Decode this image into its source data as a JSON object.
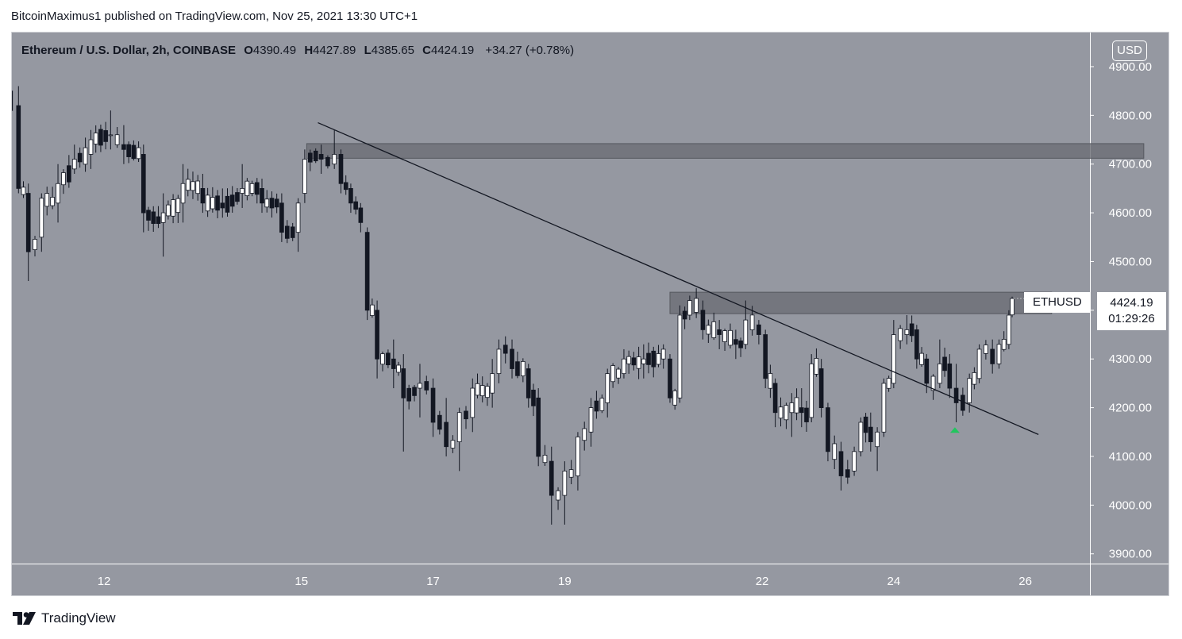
{
  "header": {
    "publish_line": "BitcoinMaximus1 published on TradingView.com, Nov 25, 2021 13:30 UTC+1"
  },
  "legend": {
    "symbol_desc": "Ethereum / U.S. Dollar, 2h, COINBASE",
    "open_label": "O",
    "open": "4390.49",
    "high_label": "H",
    "high": "4427.89",
    "low_label": "L",
    "low": "4385.65",
    "close_label": "C",
    "close": "4424.19",
    "change": "+34.27 (+0.78%)"
  },
  "price_scale": {
    "currency_button": "USD"
  },
  "last_price_tag": {
    "symbol": "ETHUSD",
    "price": "4424.19",
    "countdown": "01:29:26"
  },
  "footer": {
    "brand": "TradingView"
  },
  "colors": {
    "background": "#9598a1",
    "candle_up": "#ffffff",
    "candle_down": "#131722",
    "zone": "#6b6e76",
    "marker": "#22c55e"
  },
  "chart_data": {
    "type": "candlestick",
    "title": "",
    "ylim": [
      3880,
      4970
    ],
    "xlim": [
      10.6,
      28.2
    ],
    "y_ticks": [
      3900,
      4000,
      4100,
      4200,
      4300,
      4400,
      4500,
      4600,
      4700,
      4800,
      4900
    ],
    "x_ticks": [
      {
        "value": 12,
        "label": "12"
      },
      {
        "value": 15,
        "label": "15"
      },
      {
        "value": 17,
        "label": "17"
      },
      {
        "value": 19,
        "label": "19"
      },
      {
        "value": 22,
        "label": "22"
      },
      {
        "value": 24,
        "label": "24"
      },
      {
        "value": 26,
        "label": "26"
      }
    ],
    "grid": false,
    "anchors": [
      [
        10.58,
        4850,
        4870,
        4830,
        4810
      ],
      [
        10.7,
        4820,
        4860,
        4640,
        4650
      ],
      [
        10.85,
        4640,
        4660,
        4460,
        4520
      ],
      [
        11.05,
        4550,
        4640,
        4520,
        4630
      ],
      [
        11.3,
        4620,
        4700,
        4580,
        4660
      ],
      [
        11.55,
        4690,
        4740,
        4680,
        4710
      ],
      [
        11.8,
        4720,
        4770,
        4690,
        4750
      ],
      [
        12.1,
        4760,
        4810,
        4730,
        4760
      ],
      [
        12.3,
        4740,
        4780,
        4700,
        4730
      ],
      [
        12.6,
        4720,
        4740,
        4560,
        4600
      ],
      [
        12.9,
        4580,
        4640,
        4510,
        4600
      ],
      [
        13.2,
        4620,
        4700,
        4580,
        4660
      ],
      [
        13.5,
        4650,
        4680,
        4600,
        4620
      ],
      [
        13.8,
        4620,
        4650,
        4590,
        4610
      ],
      [
        14.1,
        4640,
        4700,
        4610,
        4650
      ],
      [
        14.4,
        4650,
        4670,
        4600,
        4620
      ],
      [
        14.7,
        4620,
        4640,
        4540,
        4560
      ],
      [
        14.95,
        4560,
        4630,
        4520,
        4620
      ],
      [
        15.05,
        4640,
        4730,
        4620,
        4710
      ],
      [
        15.3,
        4720,
        4740,
        4680,
        4710
      ],
      [
        15.5,
        4700,
        4770,
        4690,
        4720
      ],
      [
        15.6,
        4720,
        4730,
        4640,
        4660
      ],
      [
        15.75,
        4650,
        4660,
        4600,
        4620
      ],
      [
        15.9,
        4610,
        4620,
        4560,
        4580
      ],
      [
        16.0,
        4560,
        4570,
        4380,
        4400
      ],
      [
        16.15,
        4400,
        4420,
        4260,
        4300
      ],
      [
        16.4,
        4300,
        4340,
        4240,
        4280
      ],
      [
        16.55,
        4280,
        4310,
        4110,
        4220
      ],
      [
        16.8,
        4240,
        4290,
        4180,
        4250
      ],
      [
        17.0,
        4240,
        4260,
        4140,
        4170
      ],
      [
        17.2,
        4170,
        4220,
        4100,
        4120
      ],
      [
        17.4,
        4130,
        4200,
        4070,
        4190
      ],
      [
        17.6,
        4180,
        4260,
        4150,
        4240
      ],
      [
        17.9,
        4230,
        4300,
        4200,
        4270
      ],
      [
        18.0,
        4270,
        4340,
        4250,
        4320
      ],
      [
        18.2,
        4320,
        4340,
        4260,
        4280
      ],
      [
        18.45,
        4280,
        4290,
        4200,
        4220
      ],
      [
        18.6,
        4220,
        4240,
        4080,
        4100
      ],
      [
        18.8,
        4090,
        4120,
        3960,
        4020
      ],
      [
        19.0,
        4020,
        4090,
        3960,
        4070
      ],
      [
        19.2,
        4060,
        4150,
        4030,
        4140
      ],
      [
        19.4,
        4150,
        4220,
        4120,
        4200
      ],
      [
        19.65,
        4210,
        4280,
        4180,
        4270
      ],
      [
        19.9,
        4270,
        4320,
        4260,
        4300
      ],
      [
        20.2,
        4290,
        4330,
        4260,
        4300
      ],
      [
        20.5,
        4300,
        4330,
        4280,
        4320
      ],
      [
        20.6,
        4300,
        4310,
        4210,
        4220
      ],
      [
        20.75,
        4220,
        4410,
        4210,
        4390
      ],
      [
        20.9,
        4390,
        4430,
        4380,
        4420
      ],
      [
        21.1,
        4400,
        4420,
        4340,
        4360
      ],
      [
        21.35,
        4360,
        4380,
        4320,
        4350
      ],
      [
        21.6,
        4340,
        4360,
        4300,
        4330
      ],
      [
        21.75,
        4330,
        4420,
        4320,
        4380
      ],
      [
        21.95,
        4370,
        4380,
        4330,
        4350
      ],
      [
        22.05,
        4350,
        4360,
        4240,
        4260
      ],
      [
        22.2,
        4250,
        4260,
        4160,
        4190
      ],
      [
        22.45,
        4190,
        4230,
        4140,
        4210
      ],
      [
        22.6,
        4200,
        4240,
        4160,
        4190
      ],
      [
        22.75,
        4180,
        4310,
        4170,
        4290
      ],
      [
        22.9,
        4280,
        4300,
        4180,
        4200
      ],
      [
        23.0,
        4200,
        4210,
        4090,
        4110
      ],
      [
        23.2,
        4110,
        4130,
        4030,
        4060
      ],
      [
        23.4,
        4070,
        4120,
        4060,
        4110
      ],
      [
        23.5,
        4110,
        4180,
        4100,
        4170
      ],
      [
        23.65,
        4160,
        4190,
        4110,
        4130
      ],
      [
        23.75,
        4120,
        4160,
        4070,
        4150
      ],
      [
        23.85,
        4150,
        4260,
        4140,
        4250
      ],
      [
        24.0,
        4250,
        4380,
        4240,
        4350
      ],
      [
        24.2,
        4350,
        4390,
        4330,
        4360
      ],
      [
        24.35,
        4360,
        4370,
        4280,
        4300
      ],
      [
        24.5,
        4300,
        4310,
        4230,
        4250
      ],
      [
        24.7,
        4250,
        4340,
        4240,
        4290
      ],
      [
        24.85,
        4290,
        4310,
        4220,
        4240
      ],
      [
        24.95,
        4240,
        4290,
        4170,
        4210
      ],
      [
        25.15,
        4210,
        4270,
        4190,
        4260
      ],
      [
        25.3,
        4260,
        4330,
        4250,
        4320
      ],
      [
        25.5,
        4320,
        4340,
        4270,
        4290
      ],
      [
        25.6,
        4290,
        4340,
        4280,
        4330
      ],
      [
        25.75,
        4330,
        4400,
        4320,
        4390
      ],
      [
        25.8,
        4390.49,
        4427.89,
        4385.65,
        4424.19
      ]
    ],
    "resistance_zones": [
      {
        "x_from": 15.08,
        "x_to": 27.8,
        "y_from": 4712,
        "y_to": 4742
      },
      {
        "x_from": 20.6,
        "x_to": 26.4,
        "y_from": 4393,
        "y_to": 4437
      }
    ],
    "trendline": {
      "from": [
        15.25,
        4785
      ],
      "to": [
        26.2,
        4145
      ]
    },
    "marker": {
      "type": "arrow-up",
      "x": 24.93,
      "y": 4155
    },
    "last_price": 4424.19
  }
}
